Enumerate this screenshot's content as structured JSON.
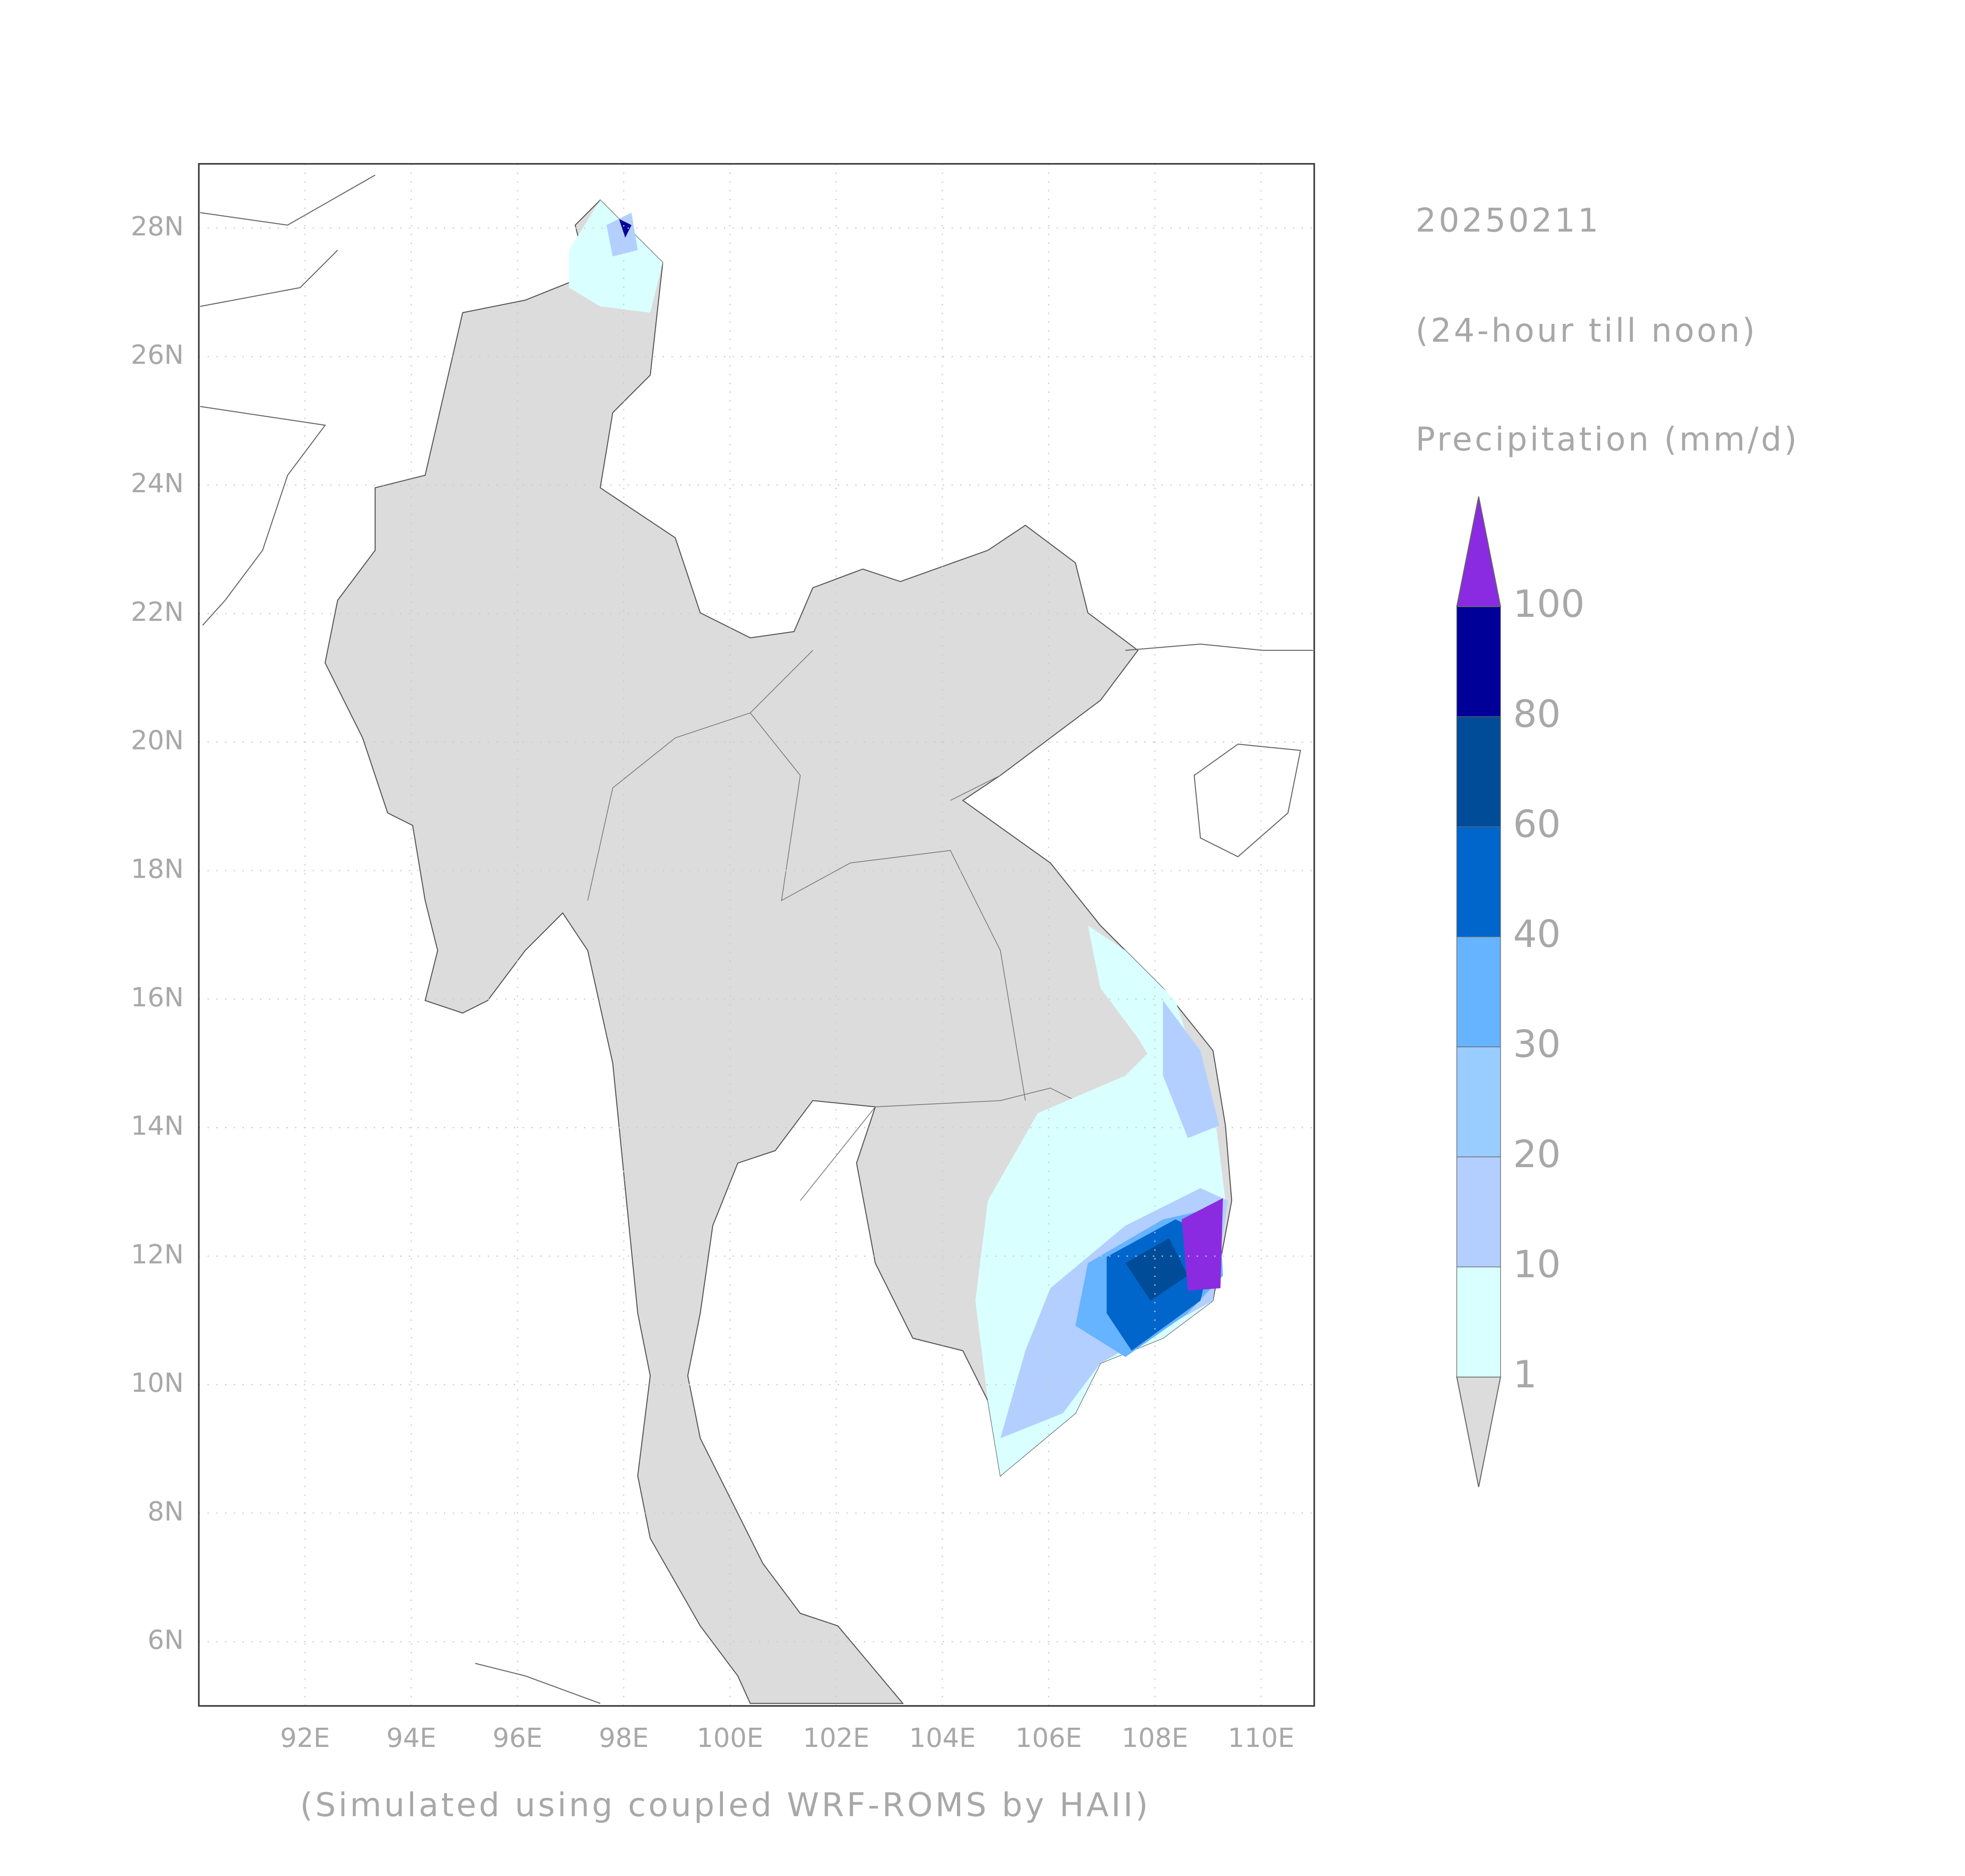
{
  "map": {
    "title": "20250211",
    "subtitle": "(24-hour till noon)",
    "variable": "Precipitation (mm/d)",
    "footer": "(Simulated using coupled WRF-ROMS by HAII)",
    "xlim": [
      90,
      111
    ],
    "ylim": [
      5,
      29
    ],
    "xticks": [
      {
        "value": 92,
        "label": "92E"
      },
      {
        "value": 94,
        "label": "94E"
      },
      {
        "value": 96,
        "label": "96E"
      },
      {
        "value": 98,
        "label": "98E"
      },
      {
        "value": 100,
        "label": "100E"
      },
      {
        "value": 102,
        "label": "102E"
      },
      {
        "value": 104,
        "label": "104E"
      },
      {
        "value": 106,
        "label": "106E"
      },
      {
        "value": 108,
        "label": "108E"
      },
      {
        "value": 110,
        "label": "110E"
      }
    ],
    "yticks": [
      {
        "value": 6,
        "label": "6N"
      },
      {
        "value": 8,
        "label": "8N"
      },
      {
        "value": 10,
        "label": "10N"
      },
      {
        "value": 12,
        "label": "12N"
      },
      {
        "value": 14,
        "label": "14N"
      },
      {
        "value": 16,
        "label": "16N"
      },
      {
        "value": 18,
        "label": "18N"
      },
      {
        "value": 20,
        "label": "20N"
      },
      {
        "value": 22,
        "label": "22N"
      },
      {
        "value": 24,
        "label": "24N"
      },
      {
        "value": 26,
        "label": "26N"
      },
      {
        "value": 28,
        "label": "28N"
      }
    ],
    "grid": true,
    "colorbar": {
      "levels": [
        1,
        10,
        20,
        30,
        40,
        60,
        80,
        100
      ],
      "colors": [
        "#dcdcdc",
        "#d9ffff",
        "#b3cfff",
        "#99ccff",
        "#66b3ff",
        "#0066cc",
        "#004c99",
        "#000099",
        "#8a2be2"
      ]
    }
  }
}
